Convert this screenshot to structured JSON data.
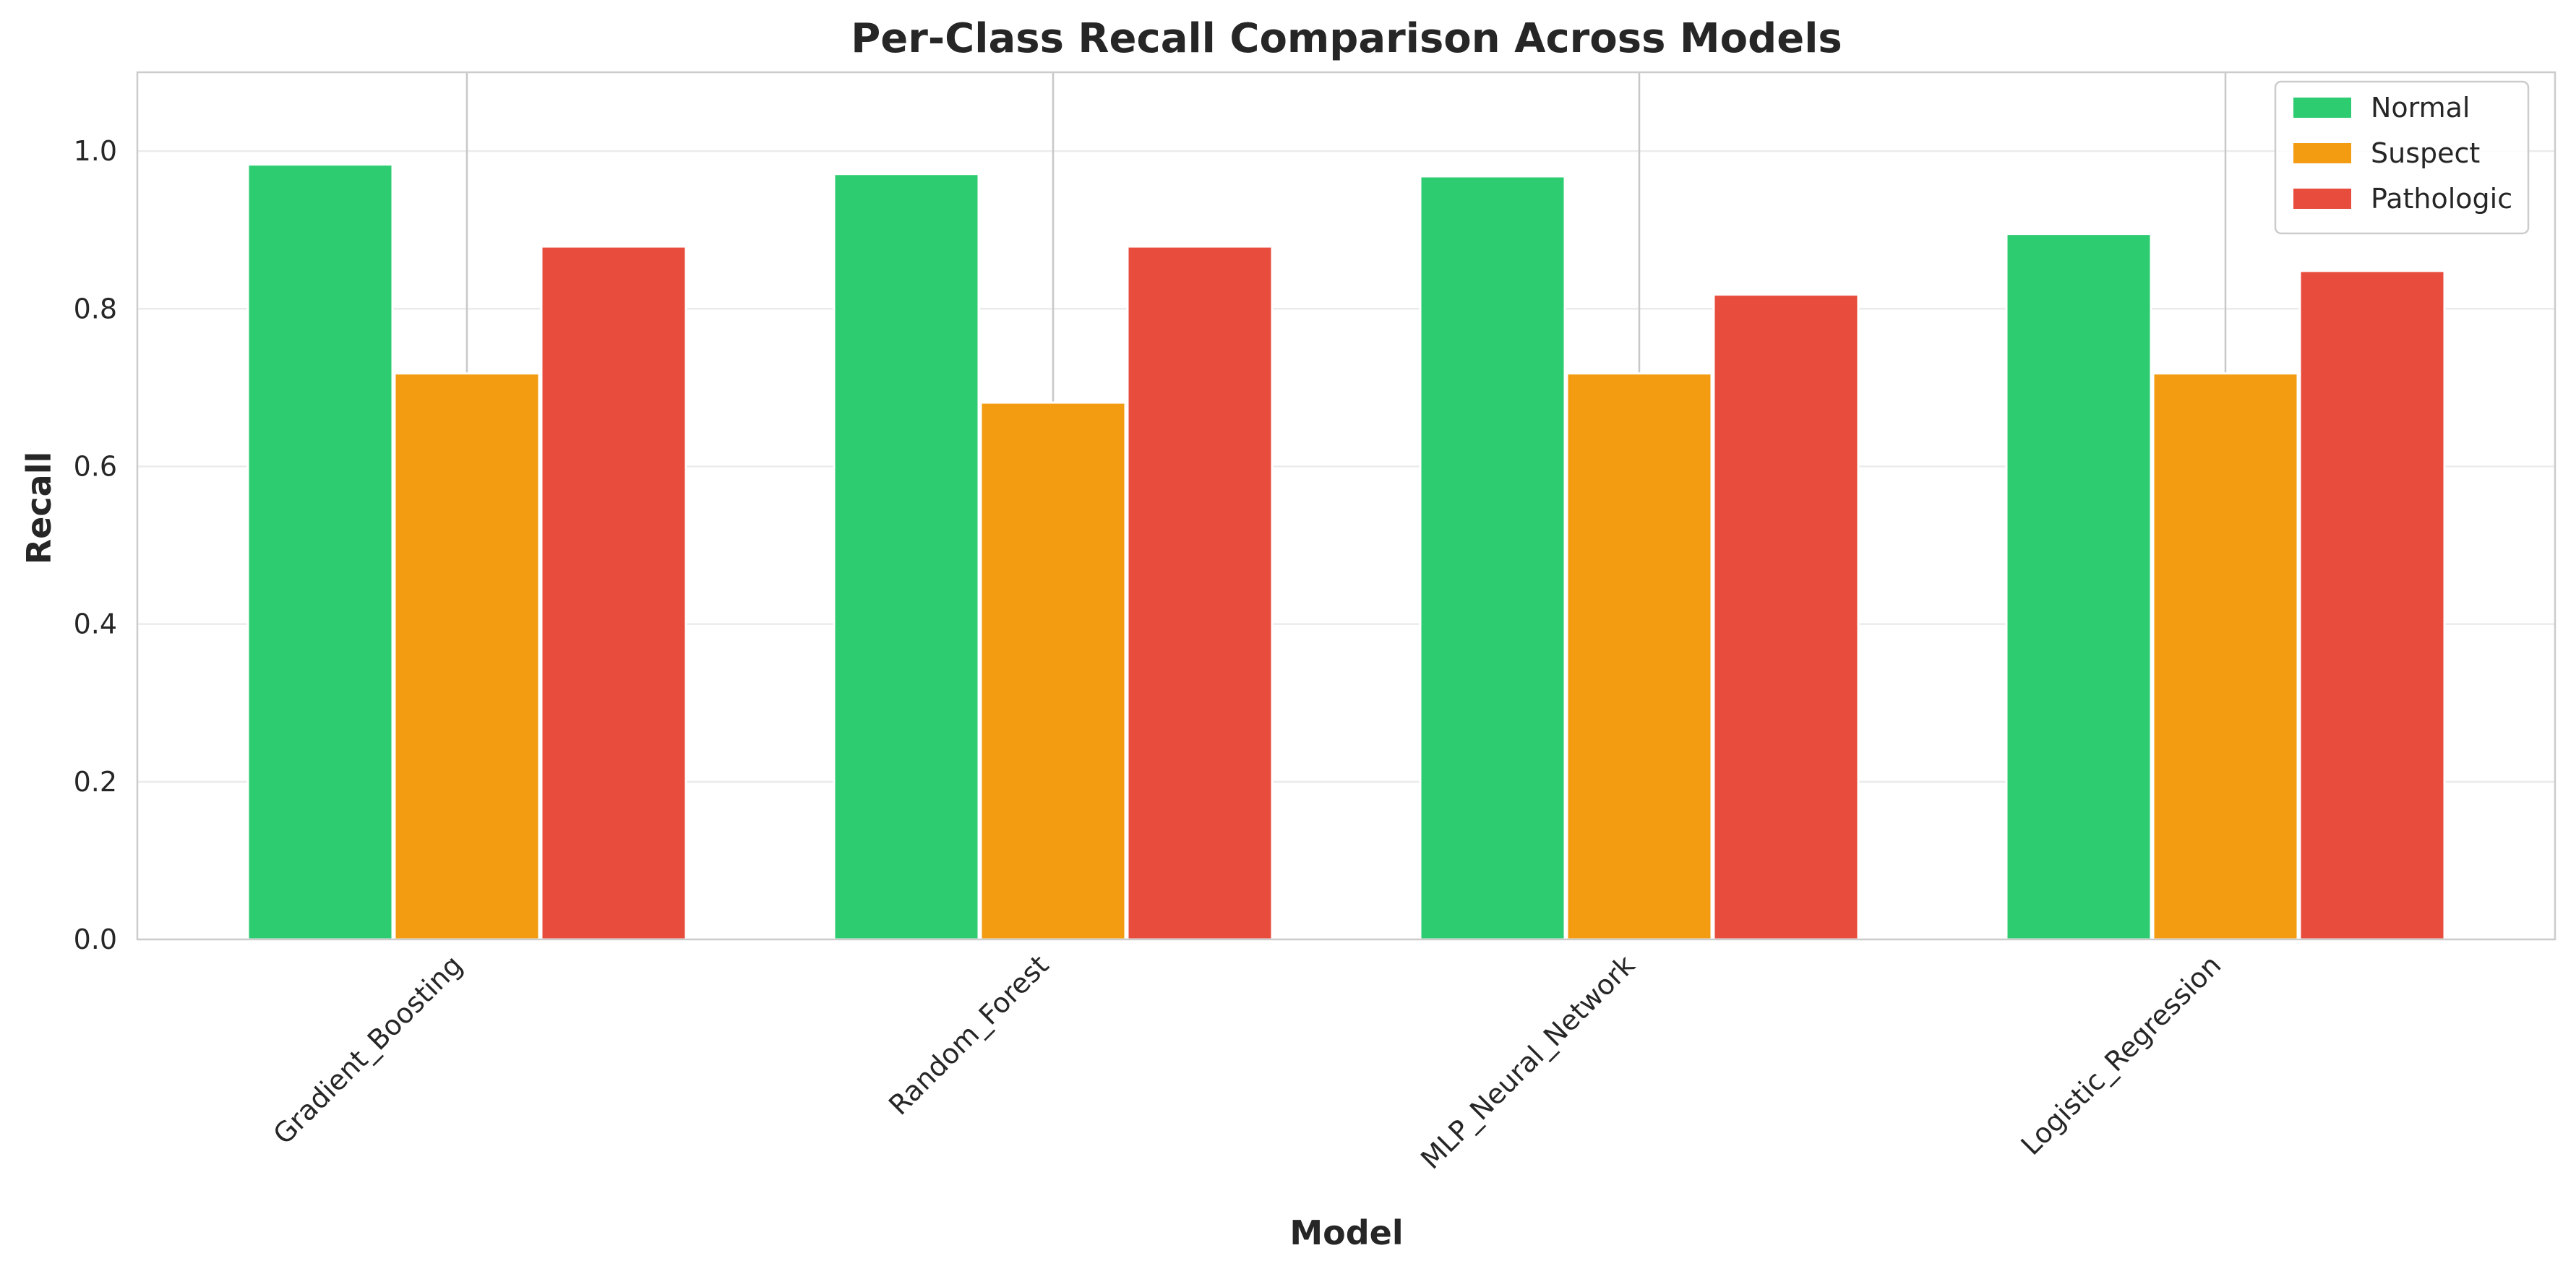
{
  "chart_data": {
    "type": "bar",
    "title": "Per-Class Recall Comparison Across Models",
    "xlabel": "Model",
    "ylabel": "Recall",
    "categories": [
      "Gradient_Boosting",
      "Random_Forest",
      "MLP_Neural_Network",
      "Logistic_Regression"
    ],
    "series": [
      {
        "name": "Normal",
        "color": "#2ecc71",
        "values": [
          0.983,
          0.971,
          0.968,
          0.895
        ]
      },
      {
        "name": "Suspect",
        "color": "#f39c12",
        "values": [
          0.718,
          0.681,
          0.718,
          0.718
        ]
      },
      {
        "name": "Pathologic",
        "color": "#e74c3c",
        "values": [
          0.879,
          0.879,
          0.818,
          0.848
        ]
      }
    ],
    "ylim": [
      0,
      1.1
    ],
    "yticks": [
      0.0,
      0.2,
      0.4,
      0.6,
      0.8,
      1.0
    ],
    "ytick_labels": [
      "0.0",
      "0.2",
      "0.4",
      "0.6",
      "0.8",
      "1.0"
    ],
    "grid": "y",
    "legend_position": "top-right"
  }
}
